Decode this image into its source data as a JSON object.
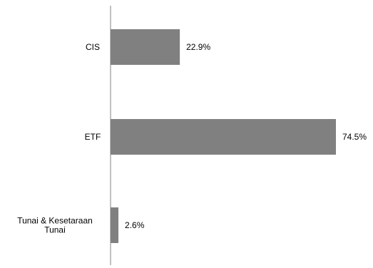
{
  "chart_data": {
    "type": "bar",
    "orientation": "horizontal",
    "categories": [
      "CIS",
      "ETF",
      "Tunai & Kesetaraan Tunai"
    ],
    "values": [
      22.9,
      74.5,
      2.6
    ],
    "value_labels": [
      "22.9%",
      "74.5%",
      "2.6%"
    ],
    "category_label_lines": [
      [
        "CIS"
      ],
      [
        "ETF"
      ],
      [
        "Tunai & Kesetaraan",
        "Tunai"
      ]
    ],
    "xlim": [
      0,
      74.5
    ],
    "grid": false,
    "legend": "none",
    "colors": {
      "bar": "#808080",
      "axis": "#808080",
      "text": "#000000"
    }
  }
}
